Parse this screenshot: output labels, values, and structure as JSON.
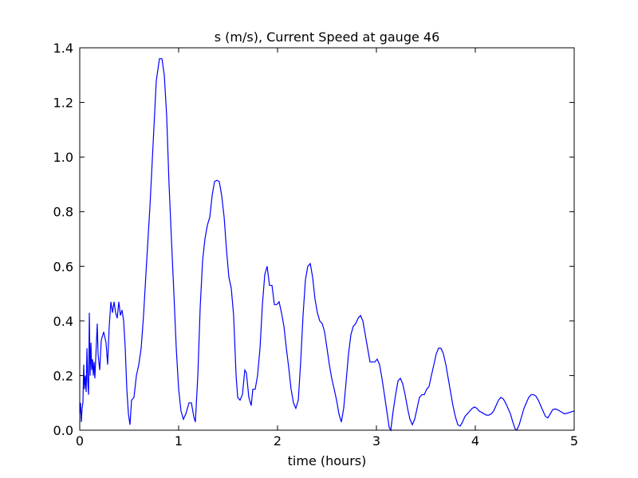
{
  "chart_data": {
    "type": "line",
    "title": "s (m/s), Current Speed at gauge 46",
    "xlabel": "time (hours)",
    "color": "#0000ff",
    "x": [
      0,
      0.008,
      0.016,
      0.024,
      0.032,
      0.04,
      0.048,
      0.056,
      0.065,
      0.073,
      0.081,
      0.089,
      0.097,
      0.105,
      0.113,
      0.121,
      0.129,
      0.137,
      0.145,
      0.153,
      0.177,
      0.185,
      0.202,
      0.218,
      0.242,
      0.266,
      0.282,
      0.298,
      0.315,
      0.331,
      0.347,
      0.363,
      0.379,
      0.395,
      0.411,
      0.427,
      0.444,
      0.46,
      0.476,
      0.492,
      0.508,
      0.524,
      0.548,
      0.573,
      0.597,
      0.621,
      0.645,
      0.677,
      0.71,
      0.742,
      0.774,
      0.806,
      0.831,
      0.855,
      0.879,
      0.903,
      0.927,
      0.952,
      0.976,
      1.0,
      1.024,
      1.048,
      1.073,
      1.105,
      1.129,
      1.153,
      1.169,
      1.194,
      1.218,
      1.242,
      1.266,
      1.29,
      1.315,
      1.339,
      1.363,
      1.387,
      1.411,
      1.435,
      1.46,
      1.484,
      1.508,
      1.532,
      1.556,
      1.581,
      1.597,
      1.621,
      1.645,
      1.669,
      1.685,
      1.71,
      1.734,
      1.75,
      1.774,
      1.798,
      1.823,
      1.847,
      1.871,
      1.895,
      1.919,
      1.944,
      1.968,
      1.992,
      2.016,
      2.04,
      2.065,
      2.089,
      2.113,
      2.137,
      2.161,
      2.185,
      2.21,
      2.234,
      2.258,
      2.282,
      2.306,
      2.331,
      2.355,
      2.379,
      2.403,
      2.427,
      2.452,
      2.476,
      2.5,
      2.524,
      2.548,
      2.573,
      2.597,
      2.621,
      2.645,
      2.669,
      2.694,
      2.718,
      2.742,
      2.766,
      2.79,
      2.815,
      2.839,
      2.863,
      2.887,
      2.911,
      2.935,
      2.96,
      2.984,
      3.008,
      3.032,
      3.056,
      3.081,
      3.105,
      3.129,
      3.145,
      3.169,
      3.194,
      3.218,
      3.242,
      3.266,
      3.29,
      3.315,
      3.339,
      3.363,
      3.387,
      3.411,
      3.435,
      3.46,
      3.484,
      3.508,
      3.532,
      3.556,
      3.581,
      3.605,
      3.629,
      3.653,
      3.677,
      3.702,
      3.726,
      3.75,
      3.774,
      3.798,
      3.823,
      3.847,
      3.871,
      3.895,
      3.919,
      3.944,
      3.968,
      3.992,
      4.016,
      4.04,
      4.065,
      4.089,
      4.113,
      4.137,
      4.161,
      4.185,
      4.21,
      4.234,
      4.258,
      4.282,
      4.306,
      4.331,
      4.355,
      4.379,
      4.403,
      4.419,
      4.444,
      4.468,
      4.492,
      4.516,
      4.54,
      4.565,
      4.589,
      4.613,
      4.637,
      4.661,
      4.685,
      4.71,
      4.734,
      4.758,
      4.782,
      4.806,
      4.831,
      4.855,
      4.879,
      4.903,
      4.927,
      4.952,
      4.976,
      5.0
    ],
    "values": [
      0.06,
      0.1,
      0.03,
      0.08,
      0.1,
      0.24,
      0.15,
      0.2,
      0.14,
      0.3,
      0.18,
      0.13,
      0.43,
      0.2,
      0.32,
      0.22,
      0.26,
      0.2,
      0.25,
      0.19,
      0.39,
      0.28,
      0.22,
      0.33,
      0.36,
      0.32,
      0.24,
      0.38,
      0.47,
      0.43,
      0.47,
      0.43,
      0.41,
      0.47,
      0.42,
      0.44,
      0.4,
      0.3,
      0.15,
      0.06,
      0.02,
      0.11,
      0.12,
      0.2,
      0.24,
      0.3,
      0.42,
      0.62,
      0.82,
      1.05,
      1.28,
      1.36,
      1.36,
      1.3,
      1.15,
      0.9,
      0.7,
      0.5,
      0.3,
      0.15,
      0.07,
      0.04,
      0.06,
      0.1,
      0.1,
      0.05,
      0.03,
      0.2,
      0.45,
      0.62,
      0.7,
      0.75,
      0.78,
      0.86,
      0.91,
      0.915,
      0.91,
      0.86,
      0.78,
      0.66,
      0.56,
      0.52,
      0.42,
      0.2,
      0.12,
      0.11,
      0.13,
      0.22,
      0.21,
      0.12,
      0.09,
      0.15,
      0.15,
      0.2,
      0.3,
      0.46,
      0.57,
      0.6,
      0.53,
      0.53,
      0.46,
      0.46,
      0.47,
      0.43,
      0.38,
      0.3,
      0.23,
      0.15,
      0.1,
      0.08,
      0.11,
      0.25,
      0.42,
      0.55,
      0.6,
      0.61,
      0.56,
      0.48,
      0.43,
      0.4,
      0.39,
      0.36,
      0.3,
      0.24,
      0.19,
      0.15,
      0.11,
      0.06,
      0.03,
      0.08,
      0.18,
      0.28,
      0.35,
      0.38,
      0.39,
      0.41,
      0.42,
      0.4,
      0.35,
      0.3,
      0.25,
      0.25,
      0.25,
      0.26,
      0.24,
      0.19,
      0.13,
      0.07,
      0.01,
      0.0,
      0.07,
      0.13,
      0.18,
      0.19,
      0.17,
      0.13,
      0.08,
      0.04,
      0.02,
      0.04,
      0.08,
      0.12,
      0.13,
      0.13,
      0.15,
      0.16,
      0.2,
      0.24,
      0.28,
      0.3,
      0.3,
      0.28,
      0.24,
      0.19,
      0.14,
      0.09,
      0.05,
      0.02,
      0.015,
      0.03,
      0.05,
      0.06,
      0.07,
      0.08,
      0.085,
      0.08,
      0.07,
      0.065,
      0.06,
      0.055,
      0.055,
      0.06,
      0.07,
      0.09,
      0.11,
      0.12,
      0.115,
      0.1,
      0.08,
      0.06,
      0.03,
      0.005,
      0.0,
      0.02,
      0.05,
      0.08,
      0.1,
      0.12,
      0.13,
      0.13,
      0.125,
      0.11,
      0.09,
      0.07,
      0.05,
      0.045,
      0.06,
      0.075,
      0.078,
      0.075,
      0.07,
      0.065,
      0.06,
      0.062,
      0.065,
      0.068,
      0.07
    ],
    "xlim": [
      0,
      5
    ],
    "xticks": [
      0,
      1,
      2,
      3,
      4,
      5
    ],
    "ylim": [
      0,
      1.4
    ],
    "yticks": [
      {
        "value": 0,
        "label": "0.0"
      },
      0.2,
      0.4,
      0.6,
      0.8,
      {
        "value": 1,
        "label": "1.0"
      },
      1.2,
      1.4
    ],
    "hlines": [
      {
        "y": 0,
        "color": "#000000",
        "dash": "dashed"
      }
    ]
  }
}
